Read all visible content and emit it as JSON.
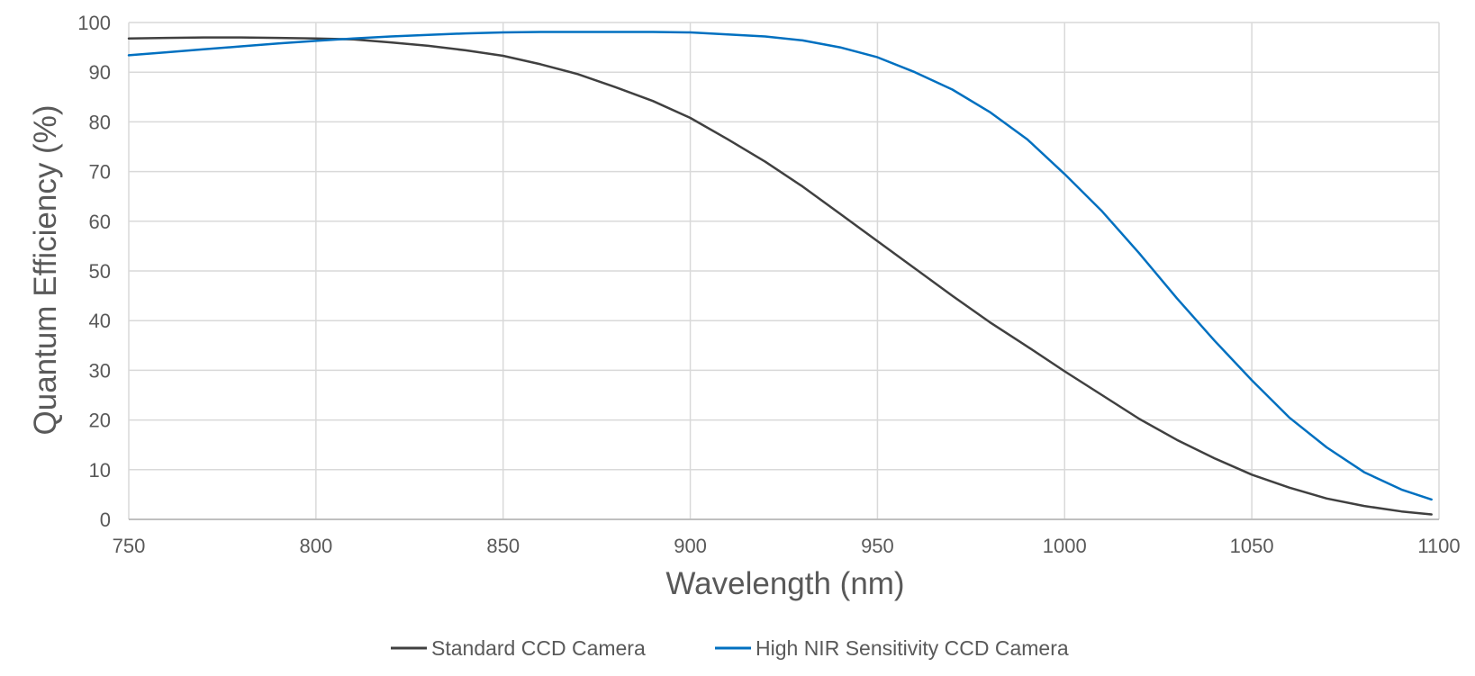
{
  "chart_data": {
    "type": "line",
    "title": "",
    "xlabel": "Wavelength (nm)",
    "ylabel": "Quantum Efficiency (%)",
    "xlim": [
      750,
      1100
    ],
    "ylim": [
      0,
      100
    ],
    "x_ticks": [
      750,
      800,
      850,
      900,
      950,
      1000,
      1050,
      1100
    ],
    "y_ticks": [
      0,
      10,
      20,
      30,
      40,
      50,
      60,
      70,
      80,
      90,
      100
    ],
    "grid": true,
    "legend_position": "bottom-center",
    "series": [
      {
        "name": "Standard CCD Camera",
        "color": "#404040",
        "x": [
          750,
          760,
          770,
          780,
          790,
          800,
          810,
          820,
          830,
          840,
          850,
          860,
          870,
          880,
          890,
          900,
          910,
          920,
          930,
          940,
          950,
          960,
          970,
          980,
          990,
          1000,
          1010,
          1020,
          1030,
          1040,
          1050,
          1060,
          1070,
          1080,
          1090,
          1098
        ],
        "y": [
          96.8,
          96.9,
          97.0,
          97.0,
          96.9,
          96.8,
          96.6,
          96.0,
          95.3,
          94.4,
          93.3,
          91.6,
          89.6,
          87.0,
          84.2,
          80.8,
          76.5,
          72.0,
          67.0,
          61.5,
          56.0,
          50.5,
          45.0,
          39.7,
          34.8,
          29.8,
          25.0,
          20.2,
          16.0,
          12.3,
          9.0,
          6.4,
          4.2,
          2.7,
          1.6,
          1.0
        ]
      },
      {
        "name": "High NIR Sensitivity CCD Camera",
        "color": "#0070C0",
        "x": [
          750,
          760,
          770,
          780,
          790,
          800,
          810,
          820,
          830,
          840,
          850,
          860,
          870,
          880,
          890,
          900,
          910,
          920,
          930,
          940,
          950,
          960,
          970,
          980,
          990,
          1000,
          1010,
          1020,
          1030,
          1040,
          1050,
          1060,
          1070,
          1080,
          1090,
          1098
        ],
        "y": [
          93.4,
          94.0,
          94.6,
          95.2,
          95.8,
          96.3,
          96.8,
          97.2,
          97.5,
          97.8,
          98.0,
          98.1,
          98.1,
          98.1,
          98.1,
          98.0,
          97.6,
          97.2,
          96.4,
          95.0,
          93.0,
          90.0,
          86.5,
          82.0,
          76.5,
          69.5,
          62.0,
          53.5,
          44.5,
          36.0,
          28.0,
          20.5,
          14.5,
          9.5,
          6.0,
          4.0
        ]
      }
    ]
  }
}
